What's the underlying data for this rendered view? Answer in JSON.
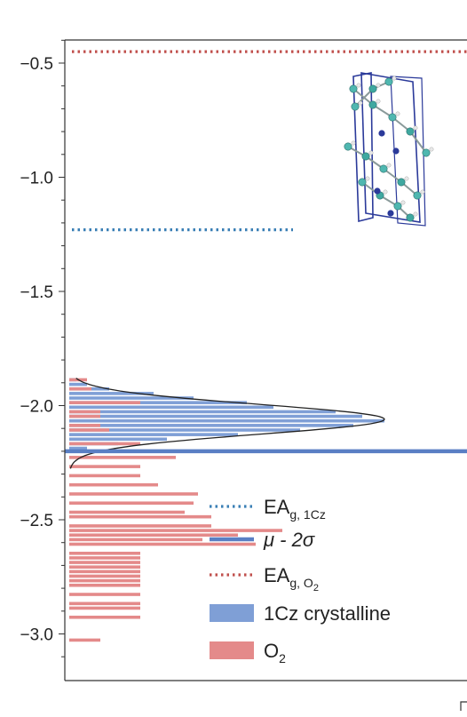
{
  "chart_data": {
    "type": "bar",
    "orientation": "horizontal-histogram",
    "title": "",
    "xlabel": "",
    "ylabel": "",
    "ylim": [
      -3.2,
      -0.4
    ],
    "yticks": [
      -0.5,
      -1.0,
      -1.5,
      -2.0,
      -2.5,
      -3.0
    ],
    "ytick_labels": [
      "−0.5",
      "−1.0",
      "−1.5",
      "−2.0",
      "−2.5",
      "−3.0"
    ],
    "grid": false,
    "legend_placement": "bottom-right",
    "reference_lines": [
      {
        "key": "ea_1cz",
        "value": -1.23,
        "style": "dotted",
        "color": "#3a7fb5",
        "extent": "partial"
      },
      {
        "key": "mu_2sigma",
        "value": -2.2,
        "style": "solid",
        "color": "#5a7fc4",
        "extent": "full"
      },
      {
        "key": "ea_o2",
        "value": -0.45,
        "style": "dotted",
        "color": "#c0504d",
        "extent": "full"
      }
    ],
    "fit_curve": {
      "center": -2.06,
      "sigma": 0.065,
      "peak_count": 355,
      "color": "#222222"
    },
    "series": [
      {
        "key": "crystalline",
        "color": "#7f9fd6",
        "bin_width": 0.02,
        "bins": [
          {
            "y": -1.88,
            "count": 8
          },
          {
            "y": -1.9,
            "count": 20
          },
          {
            "y": -1.92,
            "count": 45
          },
          {
            "y": -1.94,
            "count": 95
          },
          {
            "y": -1.96,
            "count": 140
          },
          {
            "y": -1.98,
            "count": 200
          },
          {
            "y": -2.0,
            "count": 230
          },
          {
            "y": -2.02,
            "count": 300
          },
          {
            "y": -2.04,
            "count": 330
          },
          {
            "y": -2.06,
            "count": 355
          },
          {
            "y": -2.08,
            "count": 320
          },
          {
            "y": -2.1,
            "count": 260
          },
          {
            "y": -2.12,
            "count": 190
          },
          {
            "y": -2.14,
            "count": 110
          },
          {
            "y": -2.16,
            "count": 55
          },
          {
            "y": -2.18,
            "count": 20
          }
        ]
      },
      {
        "key": "o2",
        "color": "#e48a8a",
        "bin_width": 0.02,
        "bins": [
          {
            "y": -1.88,
            "count": 20
          },
          {
            "y": -1.92,
            "count": 25
          },
          {
            "y": -1.98,
            "count": 80
          },
          {
            "y": -2.02,
            "count": 35
          },
          {
            "y": -2.04,
            "count": 35
          },
          {
            "y": -2.08,
            "count": 35
          },
          {
            "y": -2.1,
            "count": 45
          },
          {
            "y": -2.16,
            "count": 80
          },
          {
            "y": -2.22,
            "count": 120
          },
          {
            "y": -2.26,
            "count": 80
          },
          {
            "y": -2.3,
            "count": 80
          },
          {
            "y": -2.34,
            "count": 100
          },
          {
            "y": -2.38,
            "count": 145
          },
          {
            "y": -2.42,
            "count": 140
          },
          {
            "y": -2.46,
            "count": 130
          },
          {
            "y": -2.48,
            "count": 160
          },
          {
            "y": -2.52,
            "count": 160
          },
          {
            "y": -2.54,
            "count": 240
          },
          {
            "y": -2.56,
            "count": 190
          },
          {
            "y": -2.58,
            "count": 150
          },
          {
            "y": -2.6,
            "count": 210
          },
          {
            "y": -2.64,
            "count": 80
          },
          {
            "y": -2.66,
            "count": 80
          },
          {
            "y": -2.68,
            "count": 80
          },
          {
            "y": -2.7,
            "count": 80
          },
          {
            "y": -2.72,
            "count": 80
          },
          {
            "y": -2.74,
            "count": 80
          },
          {
            "y": -2.76,
            "count": 80
          },
          {
            "y": -2.78,
            "count": 80
          },
          {
            "y": -2.82,
            "count": 80
          },
          {
            "y": -2.86,
            "count": 80
          },
          {
            "y": -2.88,
            "count": 80
          },
          {
            "y": -2.92,
            "count": 80
          },
          {
            "y": -3.02,
            "count": 35
          }
        ]
      }
    ]
  },
  "legend": [
    {
      "key": "ea_1cz",
      "main": "EA",
      "sub": "g, 1Cz",
      "sub2": "",
      "style": "dotted",
      "color": "#3a7fb5"
    },
    {
      "key": "mu_2sigma",
      "main": "μ - 2σ",
      "sub": "",
      "sub2": "",
      "style": "solid",
      "color": "#5a7fc4"
    },
    {
      "key": "ea_o2",
      "main": "EA",
      "sub": "g, O",
      "sub2": "2",
      "style": "dotted",
      "color": "#c0504d"
    },
    {
      "key": "crystalline",
      "main": "1Cz crystalline",
      "sub": "",
      "sub2": "",
      "style": "patch",
      "color": "#7f9fd6"
    },
    {
      "key": "o2",
      "main": "O",
      "sub": "2",
      "sub2": "",
      "style": "patch",
      "color": "#e48a8a"
    }
  ],
  "inset": {
    "icon": "crystal-structure-icon"
  }
}
